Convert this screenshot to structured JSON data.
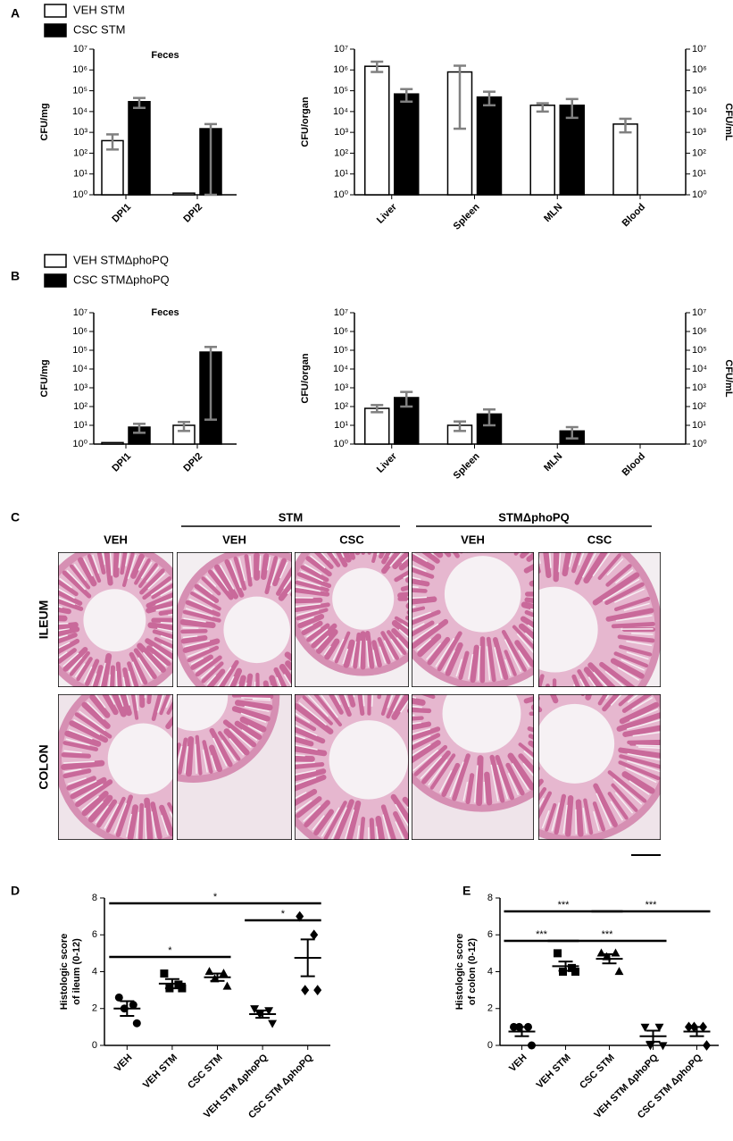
{
  "panel_labels": [
    "A",
    "B",
    "C",
    "D",
    "E"
  ],
  "chart_data": [
    {
      "type": "bar",
      "title": "Feces",
      "ylabel": "CFU/mg",
      "log_y": true,
      "categories": [
        "DPI1",
        "DPI2"
      ],
      "series": [
        {
          "name": "VEH STM",
          "color": "#ffffff",
          "values": [
            400,
            1.2
          ],
          "error_low": [
            150,
            null
          ],
          "error_high": [
            800,
            null
          ]
        },
        {
          "name": "CSC STM",
          "color": "#000000",
          "values": [
            30000,
            1500
          ],
          "error_low": [
            15000,
            1
          ],
          "error_high": [
            45000,
            2500
          ]
        }
      ],
      "error_color": "#808080",
      "ylim": [
        1,
        10000000
      ],
      "yticks": [
        {
          "value": 1,
          "label": "10⁰"
        },
        {
          "value": 10,
          "label": "10¹"
        },
        {
          "value": 100,
          "label": "10²"
        },
        {
          "value": 1000,
          "label": "10³"
        },
        {
          "value": 10000,
          "label": "10⁴"
        },
        {
          "value": 100000,
          "label": "10⁵"
        },
        {
          "value": 1000000,
          "label": "10⁶"
        },
        {
          "value": 10000000,
          "label": "10⁷"
        }
      ]
    },
    {
      "type": "bar",
      "ylabel": "CFU/organ",
      "y2label": "CFU/mL",
      "log_y": true,
      "categories": [
        "Liver",
        "Spleen",
        "MLN",
        "Blood"
      ],
      "series": [
        {
          "color": "#ffffff",
          "values": [
            1500000,
            800000,
            20000,
            2500
          ],
          "error_low": [
            800000,
            1500,
            10000,
            1000
          ],
          "error_high": [
            2500000,
            1600000,
            25000,
            4500
          ]
        },
        {
          "color": "#000000",
          "values": [
            70000,
            50000,
            20000,
            null
          ],
          "error_low": [
            30000,
            20000,
            5000,
            null
          ],
          "error_high": [
            120000,
            90000,
            40000,
            null
          ]
        }
      ],
      "error_color": "#808080",
      "ylim": [
        1,
        10000000
      ],
      "yticks": [
        {
          "value": 1,
          "label": "10⁰"
        },
        {
          "value": 10,
          "label": "10¹"
        },
        {
          "value": 100,
          "label": "10²"
        },
        {
          "value": 1000,
          "label": "10³"
        },
        {
          "value": 10000,
          "label": "10⁴"
        },
        {
          "value": 100000,
          "label": "10⁵"
        },
        {
          "value": 1000000,
          "label": "10⁶"
        },
        {
          "value": 10000000,
          "label": "10⁷"
        }
      ],
      "y2lim": [
        1,
        10000000
      ],
      "y2ticks": [
        {
          "value": 1,
          "label": "10⁰"
        },
        {
          "value": 10,
          "label": "10¹"
        },
        {
          "value": 100,
          "label": "10²"
        },
        {
          "value": 1000,
          "label": "10³"
        },
        {
          "value": 10000,
          "label": "10⁴"
        },
        {
          "value": 100000,
          "label": "10⁵"
        },
        {
          "value": 1000000,
          "label": "10⁶"
        },
        {
          "value": 10000000,
          "label": "10⁷"
        }
      ]
    },
    {
      "type": "bar",
      "title": "Feces",
      "ylabel": "CFU/mg",
      "log_y": true,
      "categories": [
        "DPI1",
        "DPI2"
      ],
      "series": [
        {
          "name": "VEH STMΔphoPQ",
          "color": "#ffffff",
          "values": [
            1.2,
            10
          ],
          "error_low": [
            null,
            5
          ],
          "error_high": [
            null,
            15
          ]
        },
        {
          "name": "CSC STMΔphoPQ",
          "color": "#000000",
          "values": [
            8,
            80000
          ],
          "error_low": [
            4,
            20
          ],
          "error_high": [
            12,
            150000
          ]
        }
      ],
      "error_color": "#808080",
      "ylim": [
        1,
        10000000
      ],
      "yticks": [
        {
          "value": 1,
          "label": "10⁰"
        },
        {
          "value": 10,
          "label": "10¹"
        },
        {
          "value": 100,
          "label": "10²"
        },
        {
          "value": 1000,
          "label": "10³"
        },
        {
          "value": 10000,
          "label": "10⁴"
        },
        {
          "value": 100000,
          "label": "10⁵"
        },
        {
          "value": 1000000,
          "label": "10⁶"
        },
        {
          "value": 10000000,
          "label": "10⁷"
        }
      ]
    },
    {
      "type": "bar",
      "ylabel": "CFU/organ",
      "y2label": "CFU/mL",
      "log_y": true,
      "categories": [
        "Liver",
        "Spleen",
        "MLN",
        "Blood"
      ],
      "series": [
        {
          "color": "#ffffff",
          "values": [
            80,
            10,
            null,
            null
          ],
          "error_low": [
            50,
            5,
            null,
            null
          ],
          "error_high": [
            120,
            16,
            null,
            null
          ]
        },
        {
          "color": "#000000",
          "values": [
            300,
            40,
            5,
            null
          ],
          "error_low": [
            100,
            10,
            2,
            null
          ],
          "error_high": [
            600,
            70,
            8,
            null
          ]
        }
      ],
      "error_color": "#808080",
      "ylim": [
        1,
        10000000
      ],
      "yticks": [
        {
          "value": 1,
          "label": "10⁰"
        },
        {
          "value": 10,
          "label": "10¹"
        },
        {
          "value": 100,
          "label": "10²"
        },
        {
          "value": 1000,
          "label": "10³"
        },
        {
          "value": 10000,
          "label": "10⁴"
        },
        {
          "value": 100000,
          "label": "10⁵"
        },
        {
          "value": 1000000,
          "label": "10⁶"
        },
        {
          "value": 10000000,
          "label": "10⁷"
        }
      ],
      "y2lim": [
        1,
        10000000
      ],
      "y2ticks": [
        {
          "value": 1,
          "label": "10⁰"
        },
        {
          "value": 10,
          "label": "10¹"
        },
        {
          "value": 100,
          "label": "10²"
        },
        {
          "value": 1000,
          "label": "10³"
        },
        {
          "value": 10000,
          "label": "10⁴"
        },
        {
          "value": 100000,
          "label": "10⁵"
        },
        {
          "value": 1000000,
          "label": "10⁶"
        },
        {
          "value": 10000000,
          "label": "10⁷"
        }
      ]
    },
    {
      "type": "dot",
      "ylabel": [
        "Histologic score",
        "of ileum (0-12)"
      ],
      "categories": [
        "VEH",
        "VEH STM",
        "CSC STM",
        "VEH STM ΔphoPQ",
        "CSC STM ΔphoPQ"
      ],
      "markers": [
        "circle",
        "square",
        "triangle-up",
        "triangle-down",
        "diamond"
      ],
      "color": "#000000",
      "points": [
        [
          2.6,
          2.2,
          2,
          1.2
        ],
        [
          3.9,
          3.3,
          3.1,
          3.1
        ],
        [
          4,
          3.9,
          3.6,
          3.2
        ],
        [
          2,
          1.9,
          1.7,
          1.2
        ],
        [
          7,
          6,
          3,
          3
        ]
      ],
      "means": [
        2,
        3.35,
        3.7,
        1.7,
        4.75
      ],
      "sems": [
        0.4,
        0.25,
        0.2,
        0.2,
        1
      ],
      "ylim": [
        0,
        8
      ],
      "yticks": [
        0,
        2,
        4,
        6,
        8
      ],
      "annotations": [
        {
          "from": 0,
          "to": 4,
          "label": "*"
        },
        {
          "from": 3,
          "to": 4,
          "label": "*"
        },
        {
          "from": 0,
          "to": 2,
          "label": "*"
        }
      ]
    },
    {
      "type": "dot",
      "ylabel": [
        "Histologic score",
        "of colon (0-12)"
      ],
      "categories": [
        "VEH",
        "VEH STM",
        "CSC STM",
        "VEH STM ΔphoPQ",
        "CSC STM ΔphoPQ"
      ],
      "markers": [
        "circle",
        "square",
        "triangle-up",
        "triangle-down",
        "diamond"
      ],
      "color": "#000000",
      "points": [
        [
          1,
          1,
          1,
          0
        ],
        [
          5,
          4.2,
          4,
          4
        ],
        [
          5,
          5,
          4.8,
          4
        ],
        [
          1,
          1,
          0,
          0
        ],
        [
          1,
          1,
          1,
          0
        ]
      ],
      "means": [
        0.75,
        4.3,
        4.7,
        0.5,
        0.75
      ],
      "sems": [
        0.25,
        0.25,
        0.25,
        0.3,
        0.25
      ],
      "ylim": [
        0,
        8
      ],
      "yticks": [
        0,
        2,
        4,
        6,
        8
      ],
      "annotations": [
        {
          "from": 0,
          "to": 2,
          "label": "***"
        },
        {
          "from": 2,
          "to": 4,
          "label": "***"
        },
        {
          "from": 0,
          "to": 1,
          "label": "***"
        },
        {
          "from": 1,
          "to": 3,
          "label": "***"
        }
      ]
    }
  ],
  "histology": {
    "columns": [
      "VEH",
      "VEH",
      "CSC",
      "VEH",
      "CSC"
    ],
    "column_groups": [
      {
        "label": "STM",
        "columns": [
          1,
          2
        ]
      },
      {
        "label": "STMΔphoPQ",
        "columns": [
          3,
          4
        ]
      }
    ],
    "rows": [
      "ILEUM",
      "COLON"
    ]
  }
}
